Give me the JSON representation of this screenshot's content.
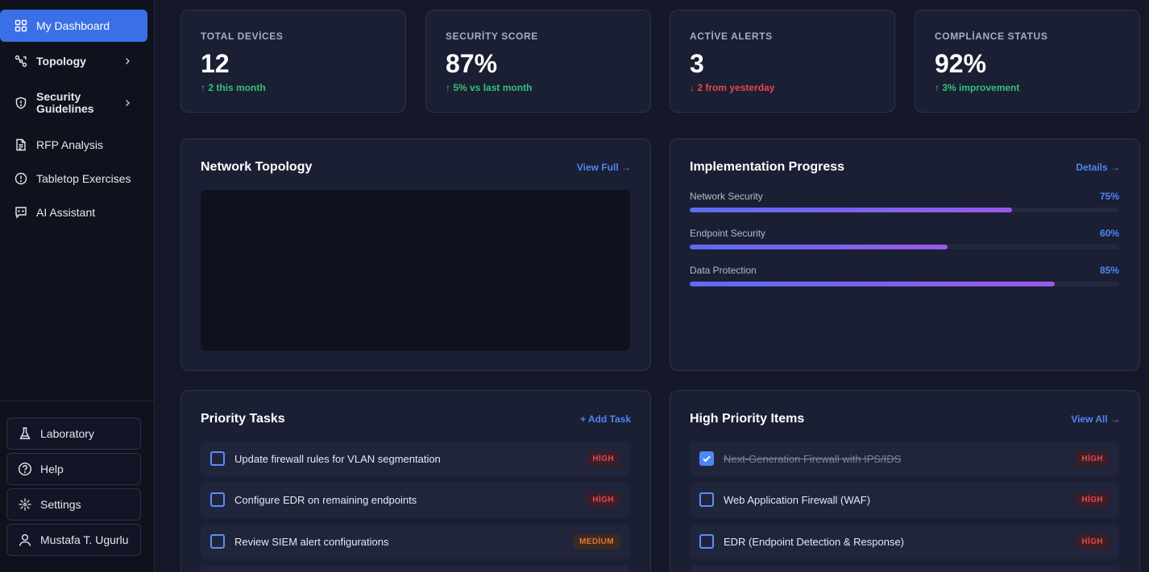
{
  "sidebar": {
    "items": [
      {
        "label": "My Dashboard",
        "icon": "grid-icon",
        "active": true
      },
      {
        "label": "Topology",
        "icon": "topology-icon",
        "has_submenu": true
      },
      {
        "label": "Security Guidelines",
        "icon": "shield-icon",
        "has_submenu": true
      },
      {
        "label": "RFP Analysis",
        "icon": "document-icon"
      },
      {
        "label": "Tabletop Exercises",
        "icon": "alert-circle-icon"
      },
      {
        "label": "AI Assistant",
        "icon": "chat-icon"
      }
    ],
    "bottom": [
      {
        "label": "Laboratory",
        "icon": "flask-icon"
      },
      {
        "label": "Help",
        "icon": "help-circle-icon"
      },
      {
        "label": "Settings",
        "icon": "settings-icon"
      },
      {
        "label": "Mustafa T. Ugurlu",
        "icon": "user-icon"
      }
    ]
  },
  "stats": [
    {
      "label": "TOTAL DEVİCES",
      "value": "12",
      "delta": "↑ 2 this month",
      "trend": "up"
    },
    {
      "label": "SECURİTY SCORE",
      "value": "87%",
      "delta": "↑ 5% vs last month",
      "trend": "up"
    },
    {
      "label": "ACTİVE ALERTS",
      "value": "3",
      "delta": "↓ 2 from yesterday",
      "trend": "down"
    },
    {
      "label": "COMPLİANCE STATUS",
      "value": "92%",
      "delta": "↑ 3% improvement",
      "trend": "up"
    }
  ],
  "topology": {
    "title": "Network Topology",
    "link": "View Full →"
  },
  "progress": {
    "title": "Implementation Progress",
    "link": "Details →",
    "items": [
      {
        "name": "Network Security",
        "label": "75%",
        "value": 0.75
      },
      {
        "name": "Endpoint Security",
        "label": "60%",
        "value": 0.6
      },
      {
        "name": "Data Protection",
        "label": "85%",
        "value": 0.85
      }
    ]
  },
  "tasks": {
    "title": "Priority Tasks",
    "link": "+ Add Task",
    "items": [
      {
        "text": "Update firewall rules for VLAN segmentation",
        "priority": "HİGH",
        "level": "high",
        "done": false
      },
      {
        "text": "Configure EDR on remaining endpoints",
        "priority": "HİGH",
        "level": "high",
        "done": false
      },
      {
        "text": "Review SIEM alert configurations",
        "priority": "MEDİUM",
        "level": "medium",
        "done": false
      }
    ]
  },
  "high_priority": {
    "title": "High Priority Items",
    "link": "View All →",
    "items": [
      {
        "text": "Next-Generation Firewall with IPS/IDS",
        "priority": "HİGH",
        "level": "high",
        "done": true
      },
      {
        "text": "Web Application Firewall (WAF)",
        "priority": "HİGH",
        "level": "high",
        "done": false
      },
      {
        "text": "EDR (Endpoint Detection & Response)",
        "priority": "HİGH",
        "level": "high",
        "done": false
      }
    ]
  },
  "colors": {
    "accent": "#3b6fe6",
    "link": "#4e86f5",
    "up": "#34c27a",
    "down": "#e5484d"
  }
}
